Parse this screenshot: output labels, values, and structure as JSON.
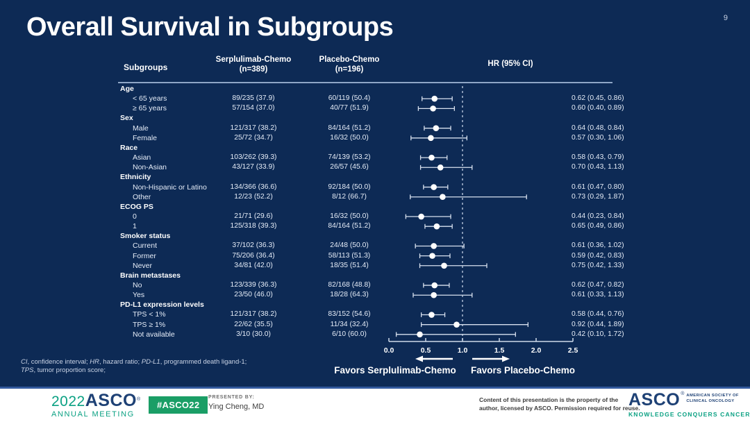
{
  "slide": {
    "title": "Overall Survival in Subgroups",
    "page_number": "9"
  },
  "colors": {
    "background": "#0D2A55",
    "text": "#FFFFFF",
    "marker": "#FFFFFF",
    "ci_line": "#D8E1EF",
    "teal": "#0BA183",
    "badge_green": "#1A9E66",
    "logo_navy": "#1E4175"
  },
  "columns": {
    "subgroups": "Subgroups",
    "serplulimab_line1": "Serplulimab-Chemo",
    "serplulimab_line2": "(n=389)",
    "placebo_line1": "Placebo-Chemo",
    "placebo_line2": "(n=196)",
    "hr": "HR (95% CI)"
  },
  "chart_data": {
    "type": "forest",
    "title": "Overall Survival in Subgroups",
    "x_axis": {
      "ticks": [
        0.0,
        0.5,
        1.0,
        1.5,
        2.0,
        2.5
      ],
      "tick_labels": [
        "0.0",
        "0.5",
        "1.0",
        "1.5",
        "2.0",
        "2.5"
      ],
      "range": [
        0.0,
        2.5
      ],
      "reference_line": 1.0
    },
    "favors_left": "Favors Serplulimab-Chemo",
    "favors_right": "Favors Placebo-Chemo",
    "rows": [
      {
        "label": "Age",
        "header": true
      },
      {
        "label": "< 65 years",
        "serplulimab": "89/235 (37.9)",
        "placebo": "60/119 (50.4)",
        "hr": 0.62,
        "ci_low": 0.45,
        "ci_high": 0.86,
        "hr_text": "0.62 (0.45, 0.86)"
      },
      {
        "label": "≥ 65 years",
        "serplulimab": "57/154 (37.0)",
        "placebo": "40/77 (51.9)",
        "hr": 0.6,
        "ci_low": 0.4,
        "ci_high": 0.89,
        "hr_text": "0.60 (0.40, 0.89)"
      },
      {
        "label": "Sex",
        "header": true
      },
      {
        "label": "Male",
        "serplulimab": "121/317 (38.2)",
        "placebo": "84/164 (51.2)",
        "hr": 0.64,
        "ci_low": 0.48,
        "ci_high": 0.84,
        "hr_text": "0.64 (0.48, 0.84)"
      },
      {
        "label": "Female",
        "serplulimab": "25/72 (34.7)",
        "placebo": "16/32 (50.0)",
        "hr": 0.57,
        "ci_low": 0.3,
        "ci_high": 1.06,
        "hr_text": "0.57 (0.30, 1.06)"
      },
      {
        "label": "Race",
        "header": true
      },
      {
        "label": "Asian",
        "serplulimab": "103/262 (39.3)",
        "placebo": "74/139 (53.2)",
        "hr": 0.58,
        "ci_low": 0.43,
        "ci_high": 0.79,
        "hr_text": "0.58 (0.43, 0.79)"
      },
      {
        "label": "Non-Asian",
        "serplulimab": "43/127 (33.9)",
        "placebo": "26/57 (45.6)",
        "hr": 0.7,
        "ci_low": 0.43,
        "ci_high": 1.13,
        "hr_text": "0.70 (0.43, 1.13)"
      },
      {
        "label": "Ethnicity",
        "header": true
      },
      {
        "label": "Non-Hispanic or Latino",
        "serplulimab": "134/366 (36.6)",
        "placebo": "92/184 (50.0)",
        "hr": 0.61,
        "ci_low": 0.47,
        "ci_high": 0.8,
        "hr_text": "0.61 (0.47, 0.80)"
      },
      {
        "label": "Other",
        "serplulimab": "12/23 (52.2)",
        "placebo": "8/12 (66.7)",
        "hr": 0.73,
        "ci_low": 0.29,
        "ci_high": 1.87,
        "hr_text": "0.73 (0.29, 1.87)"
      },
      {
        "label": "ECOG PS",
        "header": true
      },
      {
        "label": "0",
        "serplulimab": "21/71 (29.6)",
        "placebo": "16/32 (50.0)",
        "hr": 0.44,
        "ci_low": 0.23,
        "ci_high": 0.84,
        "hr_text": "0.44 (0.23, 0.84)"
      },
      {
        "label": "1",
        "serplulimab": "125/318 (39.3)",
        "placebo": "84/164 (51.2)",
        "hr": 0.65,
        "ci_low": 0.49,
        "ci_high": 0.86,
        "hr_text": "0.65 (0.49, 0.86)"
      },
      {
        "label": "Smoker status",
        "header": true
      },
      {
        "label": "Current",
        "serplulimab": "37/102 (36.3)",
        "placebo": "24/48 (50.0)",
        "hr": 0.61,
        "ci_low": 0.36,
        "ci_high": 1.02,
        "hr_text": "0.61 (0.36, 1.02)"
      },
      {
        "label": "Former",
        "serplulimab": "75/206 (36.4)",
        "placebo": "58/113 (51.3)",
        "hr": 0.59,
        "ci_low": 0.42,
        "ci_high": 0.83,
        "hr_text": "0.59 (0.42, 0.83)"
      },
      {
        "label": "Never",
        "serplulimab": "34/81 (42.0)",
        "placebo": "18/35 (51.4)",
        "hr": 0.75,
        "ci_low": 0.42,
        "ci_high": 1.33,
        "hr_text": "0.75 (0.42, 1.33)"
      },
      {
        "label": "Brain metastases",
        "header": true
      },
      {
        "label": "No",
        "serplulimab": "123/339 (36.3)",
        "placebo": "82/168 (48.8)",
        "hr": 0.62,
        "ci_low": 0.47,
        "ci_high": 0.82,
        "hr_text": "0.62 (0.47, 0.82)"
      },
      {
        "label": "Yes",
        "serplulimab": "23/50 (46.0)",
        "placebo": "18/28 (64.3)",
        "hr": 0.61,
        "ci_low": 0.33,
        "ci_high": 1.13,
        "hr_text": "0.61 (0.33, 1.13)"
      },
      {
        "label": "PD-L1 expression levels",
        "header": true
      },
      {
        "label": "TPS < 1%",
        "serplulimab": "121/317 (38.2)",
        "placebo": "83/152 (54.6)",
        "hr": 0.58,
        "ci_low": 0.44,
        "ci_high": 0.76,
        "hr_text": "0.58 (0.44, 0.76)"
      },
      {
        "label": "TPS ≥ 1%",
        "serplulimab": "22/62 (35.5)",
        "placebo": "11/34 (32.4)",
        "hr": 0.92,
        "ci_low": 0.44,
        "ci_high": 1.89,
        "hr_text": "0.92 (0.44, 1.89)"
      },
      {
        "label": "Not available",
        "serplulimab": "3/10 (30.0)",
        "placebo": "6/10 (60.0)",
        "hr": 0.42,
        "ci_low": 0.1,
        "ci_high": 1.72,
        "hr_text": "0.42 (0.10, 1.72)"
      }
    ]
  },
  "footnote": {
    "lines": [
      [
        [
          "CI",
          1
        ],
        [
          ", confidence interval; ",
          0
        ],
        [
          "HR",
          1
        ],
        [
          ", hazard ratio; ",
          0
        ],
        [
          "PD-L1",
          1
        ],
        [
          ", programmed death ligand-1;",
          0
        ]
      ],
      [
        [
          "TPS",
          1
        ],
        [
          ", tumor proportion score;",
          0
        ]
      ]
    ]
  },
  "footer": {
    "meeting_logo": {
      "year": "2022",
      "asco": "ASCO",
      "reg": "®",
      "subtitle": "ANNUAL MEETING"
    },
    "hashtag": "#ASCO22",
    "presented_by_label": "PRESENTED BY:",
    "presenter": "Ying Cheng, MD",
    "disclaimer_line1": "Content of this presentation is the property of the",
    "disclaimer_line2": "author, licensed by ASCO. Permission required for reuse.",
    "asco_logo": {
      "name": "ASCO",
      "reg": "®",
      "society_line1": "AMERICAN SOCIETY OF",
      "society_line2": "CLINICAL ONCOLOGY",
      "tagline": "KNOWLEDGE CONQUERS CANCER"
    }
  }
}
